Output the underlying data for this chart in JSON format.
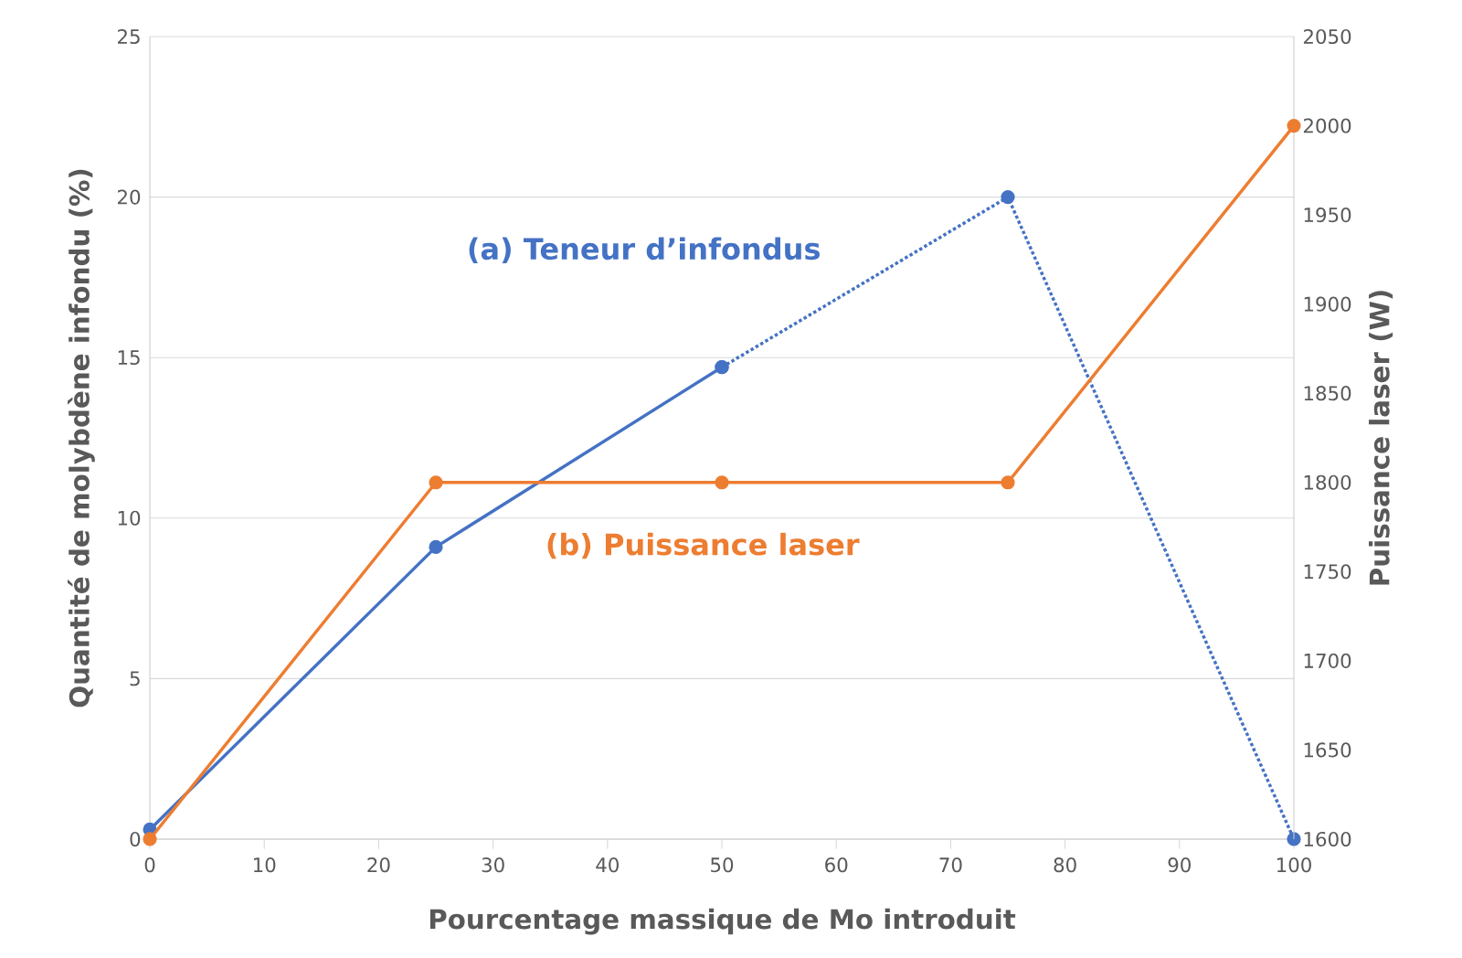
{
  "chart_data": {
    "type": "line",
    "xlabel": "Pourcentage massique de Mo introduit",
    "ylabel": "Quantité de molybdène infondu (%)",
    "y2label": "Puissance laser (W)",
    "x": [
      0,
      25,
      50,
      75,
      100
    ],
    "series": [
      {
        "name": "(a) Teneur d’infondus",
        "color": "#4472c4",
        "x": [
          0,
          25,
          50
        ],
        "values": [
          0.3,
          9.1,
          14.7
        ],
        "line_style": "solid"
      },
      {
        "color": "#4472c4",
        "x": [
          50,
          75,
          100
        ],
        "values": [
          14.7,
          20,
          0
        ],
        "line_style": "dotted"
      },
      {
        "name": "(b) Puissance laser",
        "color": "#ed7d31",
        "values": [
          1600,
          1800,
          1800,
          1800,
          2000
        ],
        "axis": "y2",
        "line_style": "solid"
      }
    ],
    "xlim": [
      0,
      100
    ],
    "xticks": [
      0,
      10,
      20,
      30,
      40,
      50,
      60,
      70,
      80,
      90,
      100
    ],
    "ylim": [
      0,
      25
    ],
    "yticks": [
      0,
      5,
      10,
      15,
      20,
      25
    ],
    "y2lim": [
      1600,
      2050
    ],
    "y2ticks": [
      1600,
      1650,
      1700,
      1750,
      1800,
      1850,
      1900,
      1950,
      2000,
      2050
    ],
    "grid": "y",
    "marker": "circle"
  }
}
